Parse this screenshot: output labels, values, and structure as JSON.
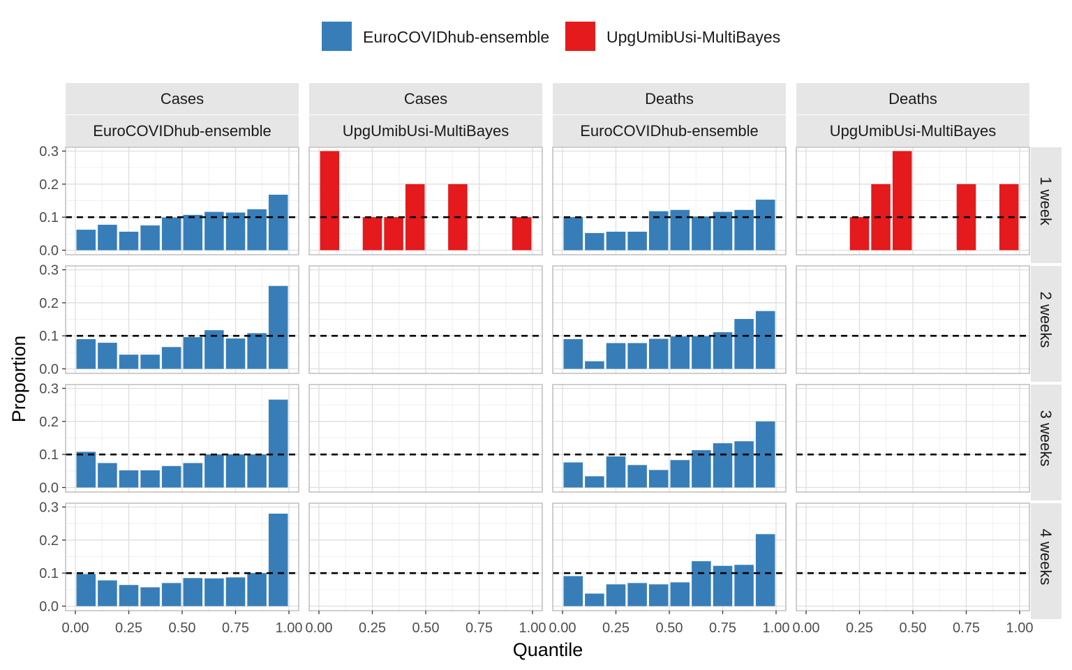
{
  "chart_data": {
    "type": "bar",
    "xlabel": "Quantile",
    "ylabel": "Proportion",
    "xlim": [
      0,
      1
    ],
    "ylim": [
      0,
      0.3
    ],
    "x_ticks": [
      0,
      0.25,
      0.5,
      0.75,
      1
    ],
    "x_tick_labels": [
      "0.00",
      "0.25",
      "0.50",
      "0.75",
      "1.00"
    ],
    "y_ticks": [
      0,
      0.1,
      0.2,
      0.3
    ],
    "y_tick_labels": [
      "0.0",
      "0.1",
      "0.2",
      "0.3"
    ],
    "reference_line": 0.1,
    "grid": true,
    "legend_position": "top",
    "legend": [
      {
        "name": "EuroCOVIDhub-ensemble",
        "color": "#377EB8"
      },
      {
        "name": "UpgUmibUsi-MultiBayes",
        "color": "#E41A1C"
      }
    ],
    "x": [
      0.05,
      0.15,
      0.25,
      0.35,
      0.45,
      0.55,
      0.65,
      0.75,
      0.85,
      0.95
    ],
    "columns": [
      {
        "top": "Cases",
        "bottom": "EuroCOVIDhub-ensemble",
        "model": "EuroCOVIDhub-ensemble"
      },
      {
        "top": "Cases",
        "bottom": "UpgUmibUsi-MultiBayes",
        "model": "UpgUmibUsi-MultiBayes"
      },
      {
        "top": "Deaths",
        "bottom": "EuroCOVIDhub-ensemble",
        "model": "EuroCOVIDhub-ensemble"
      },
      {
        "top": "Deaths",
        "bottom": "UpgUmibUsi-MultiBayes",
        "model": "UpgUmibUsi-MultiBayes"
      }
    ],
    "rows": [
      "1 week",
      "2 weeks",
      "3 weeks",
      "4 weeks"
    ],
    "values": [
      [
        [
          0.062,
          0.077,
          0.056,
          0.075,
          0.099,
          0.107,
          0.116,
          0.114,
          0.124,
          0.168
        ],
        [
          0.3,
          0,
          0.1,
          0.1,
          0.2,
          0,
          0.2,
          0,
          0,
          0.1
        ],
        [
          0.1,
          0.052,
          0.056,
          0.056,
          0.118,
          0.122,
          0.102,
          0.116,
          0.122,
          0.153
        ],
        [
          0,
          0,
          0.1,
          0.2,
          0.3,
          0,
          0,
          0.2,
          0,
          0.2
        ]
      ],
      [
        [
          0.09,
          0.079,
          0.043,
          0.043,
          0.066,
          0.096,
          0.117,
          0.092,
          0.108,
          0.251
        ],
        [],
        [
          0.09,
          0.023,
          0.078,
          0.078,
          0.091,
          0.098,
          0.099,
          0.111,
          0.151,
          0.175
        ],
        []
      ],
      [
        [
          0.108,
          0.074,
          0.052,
          0.052,
          0.065,
          0.074,
          0.1,
          0.1,
          0.1,
          0.266
        ],
        [],
        [
          0.076,
          0.034,
          0.094,
          0.068,
          0.053,
          0.083,
          0.113,
          0.134,
          0.14,
          0.2
        ],
        []
      ],
      [
        [
          0.097,
          0.078,
          0.064,
          0.057,
          0.07,
          0.085,
          0.084,
          0.087,
          0.1,
          0.28
        ],
        [],
        [
          0.091,
          0.038,
          0.066,
          0.07,
          0.066,
          0.072,
          0.136,
          0.122,
          0.125,
          0.218
        ],
        []
      ]
    ]
  }
}
